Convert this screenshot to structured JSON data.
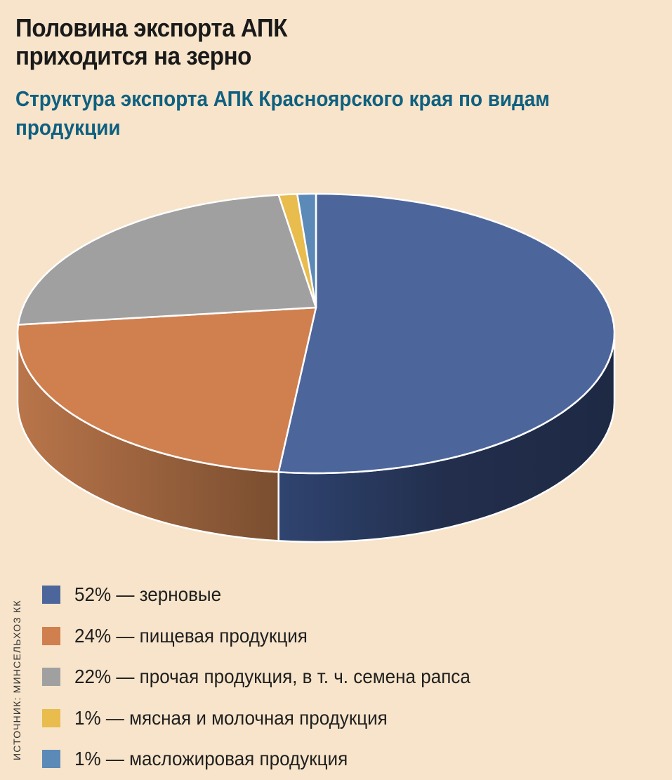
{
  "title": "Половина экспорта АПК приходится на зерно",
  "subtitle": "Структура экспорта АПК Красноярского края по видам продукции",
  "source": "ИСТОЧНИК: МИНСЕЛЬХОЗ КК",
  "colors": {
    "background": "#F7E4CA",
    "subtitle": "#0F6080"
  },
  "legend": [
    {
      "label": "52% — зерновые",
      "color": "#4C669C"
    },
    {
      "label": "24% — пищевая продукция",
      "color": "#D07F4F"
    },
    {
      "label": "22% — прочая продукция, в т. ч. семена рапса",
      "color": "#A0A0A0"
    },
    {
      "label": "1% — мясная и молочная продукция",
      "color": "#E8BC4D"
    },
    {
      "label": "1% — масложировая продукция",
      "color": "#5C8AB8"
    }
  ],
  "chart_data": {
    "type": "pie",
    "title": "Половина экспорта АПК приходится на зерно",
    "subtitle": "Структура экспорта АПК Красноярского края по видам продукции",
    "categories": [
      "зерновые",
      "пищевая продукция",
      "прочая продукция, в т. ч. семена рапса",
      "мясная и молочная продукция",
      "масложировая продукция"
    ],
    "values": [
      52,
      24,
      22,
      1,
      1
    ],
    "unit": "%",
    "colors": [
      "#4C669C",
      "#D07F4F",
      "#A0A0A0",
      "#E8BC4D",
      "#5C8AB8"
    ],
    "style": "3d",
    "legend_position": "bottom",
    "source": "ИСТОЧНИК: МИНСЕЛЬХОЗ КК"
  }
}
